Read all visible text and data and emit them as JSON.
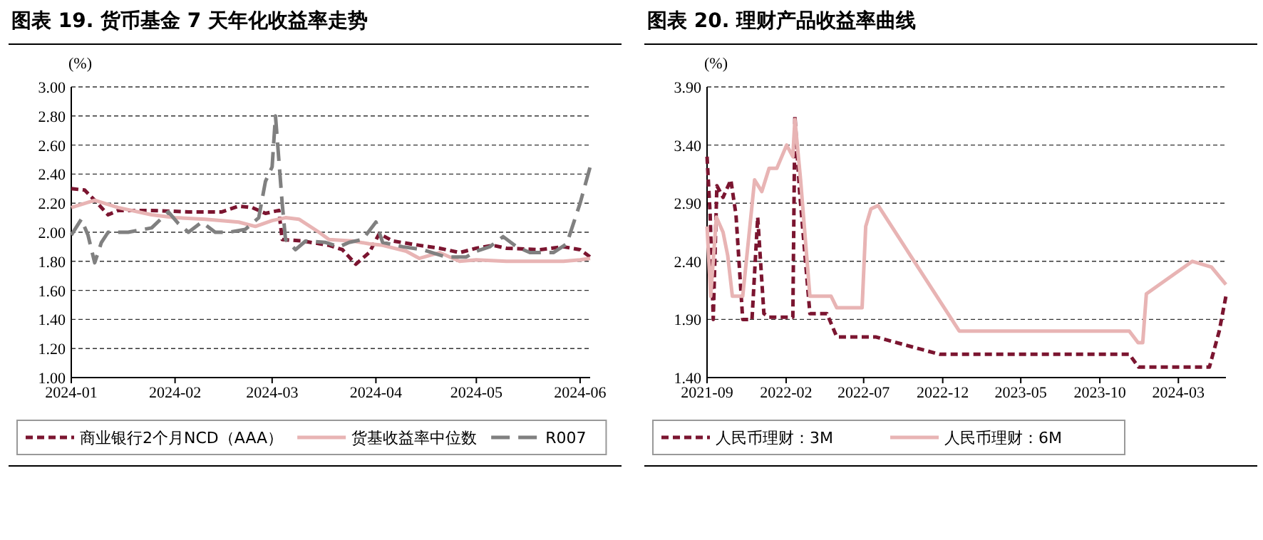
{
  "chart_data": [
    {
      "type": "line",
      "title": "图表 19. 货币基金 7 天年化收益率走势",
      "ylabel": "(%)",
      "xlim": [
        "2024-01-01",
        "2024-06-04"
      ],
      "xticks": [
        {
          "value": "2024-01-01",
          "label": "2024-01"
        },
        {
          "value": "2024-02-01",
          "label": "2024-02"
        },
        {
          "value": "2024-03-01",
          "label": "2024-03"
        },
        {
          "value": "2024-04-01",
          "label": "2024-04"
        },
        {
          "value": "2024-05-01",
          "label": "2024-05"
        },
        {
          "value": "2024-06-01",
          "label": "2024-06"
        }
      ],
      "ylim": [
        1,
        3
      ],
      "yticks": [
        {
          "value": 1,
          "label": "1.00"
        },
        {
          "value": 1.2,
          "label": "1.20"
        },
        {
          "value": 1.4,
          "label": "1.40"
        },
        {
          "value": 1.6,
          "label": "1.60"
        },
        {
          "value": 1.8,
          "label": "1.80"
        },
        {
          "value": 2,
          "label": "2.00"
        },
        {
          "value": 2.2,
          "label": "2.20"
        },
        {
          "value": 2.4,
          "label": "2.40"
        },
        {
          "value": 2.6,
          "label": "2.60"
        },
        {
          "value": 2.8,
          "label": "2.80"
        },
        {
          "value": 3,
          "label": "3.00"
        }
      ],
      "grid": "y",
      "legend": "bottom",
      "series": [
        {
          "name": "商业银行2个月NCD（AAA）",
          "color": "#7b1530",
          "line_style": "dashed",
          "x": [
            "2024-01-01",
            "2024-01-05",
            "2024-01-08",
            "2024-01-12",
            "2024-01-15",
            "2024-01-25",
            "2024-02-05",
            "2024-02-15",
            "2024-02-20",
            "2024-02-24",
            "2024-02-28",
            "2024-03-03",
            "2024-03-04",
            "2024-03-10",
            "2024-03-18",
            "2024-03-22",
            "2024-03-26",
            "2024-03-30",
            "2024-04-02",
            "2024-04-06",
            "2024-04-14",
            "2024-04-20",
            "2024-04-26",
            "2024-05-01",
            "2024-05-06",
            "2024-05-10",
            "2024-05-20",
            "2024-05-27",
            "2024-06-01",
            "2024-06-04"
          ],
          "values": [
            2.3,
            2.29,
            2.22,
            2.12,
            2.15,
            2.15,
            2.14,
            2.14,
            2.18,
            2.17,
            2.13,
            2.15,
            1.95,
            1.94,
            1.91,
            1.88,
            1.78,
            1.86,
            1.99,
            1.94,
            1.91,
            1.89,
            1.86,
            1.89,
            1.91,
            1.89,
            1.88,
            1.9,
            1.88,
            1.83
          ]
        },
        {
          "name": "货基收益率中位数",
          "color": "#e8b4b4",
          "line_style": "solid",
          "x": [
            "2024-01-01",
            "2024-01-08",
            "2024-01-15",
            "2024-01-25",
            "2024-02-01",
            "2024-02-10",
            "2024-02-15",
            "2024-02-20",
            "2024-02-25",
            "2024-03-01",
            "2024-03-05",
            "2024-03-09",
            "2024-03-15",
            "2024-03-18",
            "2024-03-25",
            "2024-03-30",
            "2024-04-03",
            "2024-04-10",
            "2024-04-14",
            "2024-04-20",
            "2024-04-26",
            "2024-05-01",
            "2024-05-10",
            "2024-05-20",
            "2024-05-27",
            "2024-06-01",
            "2024-06-04"
          ],
          "values": [
            2.17,
            2.22,
            2.17,
            2.12,
            2.1,
            2.09,
            2.08,
            2.07,
            2.04,
            2.08,
            2.1,
            2.09,
            2.0,
            1.95,
            1.94,
            1.92,
            1.91,
            1.87,
            1.82,
            1.86,
            1.8,
            1.81,
            1.8,
            1.8,
            1.8,
            1.81,
            1.82
          ]
        },
        {
          "name": "R007",
          "color": "#808080",
          "line_style": "dashed",
          "x": [
            "2024-01-01",
            "2024-01-04",
            "2024-01-06",
            "2024-01-08",
            "2024-01-10",
            "2024-01-12",
            "2024-01-18",
            "2024-01-25",
            "2024-01-30",
            "2024-02-02",
            "2024-02-05",
            "2024-02-09",
            "2024-02-13",
            "2024-02-17",
            "2024-02-22",
            "2024-02-26",
            "2024-02-28",
            "2024-03-01",
            "2024-03-02",
            "2024-03-04",
            "2024-03-05",
            "2024-03-08",
            "2024-03-11",
            "2024-03-17",
            "2024-03-21",
            "2024-03-24",
            "2024-03-28",
            "2024-04-01",
            "2024-04-03",
            "2024-04-09",
            "2024-04-15",
            "2024-04-22",
            "2024-04-28",
            "2024-05-01",
            "2024-05-05",
            "2024-05-09",
            "2024-05-13",
            "2024-05-17",
            "2024-05-24",
            "2024-05-28",
            "2024-06-01",
            "2024-06-04"
          ],
          "values": [
            1.98,
            2.09,
            1.98,
            1.79,
            1.93,
            2.0,
            2.0,
            2.03,
            2.14,
            2.06,
            2.0,
            2.07,
            2.0,
            2.0,
            2.02,
            2.1,
            2.35,
            2.45,
            2.8,
            2.2,
            1.95,
            1.88,
            1.94,
            1.93,
            1.9,
            1.93,
            1.95,
            2.07,
            1.93,
            1.9,
            1.88,
            1.83,
            1.83,
            1.87,
            1.9,
            1.97,
            1.9,
            1.86,
            1.86,
            1.92,
            2.2,
            2.45
          ]
        }
      ]
    },
    {
      "type": "line",
      "title": "图表 20. 理财产品收益率曲线",
      "ylabel": "(%)",
      "xlim": [
        "2021-09-01",
        "2024-06-01"
      ],
      "xticks": [
        {
          "value": "2021-09-01",
          "label": "2021-09"
        },
        {
          "value": "2022-02-01",
          "label": "2022-02"
        },
        {
          "value": "2022-07-01",
          "label": "2022-07"
        },
        {
          "value": "2022-12-01",
          "label": "2022-12"
        },
        {
          "value": "2023-05-01",
          "label": "2023-05"
        },
        {
          "value": "2023-10-01",
          "label": "2023-10"
        },
        {
          "value": "2024-03-01",
          "label": "2024-03"
        }
      ],
      "ylim": [
        1.4,
        3.9
      ],
      "yticks": [
        {
          "value": 1.4,
          "label": "1.40"
        },
        {
          "value": 1.9,
          "label": "1.90"
        },
        {
          "value": 2.4,
          "label": "2.40"
        },
        {
          "value": 2.9,
          "label": "2.90"
        },
        {
          "value": 3.4,
          "label": "3.40"
        },
        {
          "value": 3.9,
          "label": "3.90"
        }
      ],
      "grid": "y",
      "legend": "bottom",
      "series": [
        {
          "name": "人民币理财：3M",
          "color": "#7b1530",
          "line_style": "dashed",
          "x": [
            "2021-09-01",
            "2021-09-07",
            "2021-09-13",
            "2021-09-20",
            "2021-10-02",
            "2021-10-17",
            "2021-10-27",
            "2021-11-09",
            "2021-11-27",
            "2021-12-08",
            "2021-12-20",
            "2021-12-30",
            "2022-01-18",
            "2022-02-14",
            "2022-02-18",
            "2022-02-27",
            "2022-03-19",
            "2022-04-21",
            "2022-05-10",
            "2022-07-24",
            "2022-11-25",
            "2023-11-27",
            "2023-12-15",
            "2024-04-30",
            "2024-05-19",
            "2024-06-01"
          ],
          "values": [
            3.3,
            2.8,
            1.9,
            3.05,
            2.95,
            3.1,
            2.8,
            1.9,
            1.9,
            2.78,
            1.95,
            1.92,
            1.92,
            1.92,
            3.65,
            3.0,
            1.95,
            1.95,
            1.75,
            1.75,
            1.6,
            1.6,
            1.49,
            1.49,
            1.8,
            2.1
          ]
        },
        {
          "name": "人民币理财：6M",
          "color": "#e8b4b4",
          "line_style": "solid",
          "x": [
            "2021-09-01",
            "2021-09-08",
            "2021-09-19",
            "2021-10-02",
            "2021-10-11",
            "2021-10-20",
            "2021-11-09",
            "2021-11-21",
            "2021-12-02",
            "2021-12-16",
            "2021-12-30",
            "2022-01-14",
            "2022-02-02",
            "2022-02-14",
            "2022-02-18",
            "2022-03-01",
            "2022-03-19",
            "2022-04-29",
            "2022-05-10",
            "2022-06-28",
            "2022-07-05",
            "2022-07-15",
            "2022-07-29",
            "2023-01-02",
            "2023-11-27",
            "2023-12-14",
            "2023-12-23",
            "2023-12-30",
            "2024-03-28",
            "2024-05-04",
            "2024-06-01"
          ],
          "values": [
            2.7,
            2.1,
            2.78,
            2.65,
            2.45,
            2.1,
            2.1,
            2.62,
            3.1,
            3.0,
            3.2,
            3.2,
            3.4,
            3.3,
            3.62,
            3.1,
            2.1,
            2.1,
            2.0,
            2.0,
            2.7,
            2.85,
            2.88,
            1.8,
            1.8,
            1.7,
            1.7,
            2.12,
            2.4,
            2.35,
            2.2
          ]
        }
      ]
    }
  ]
}
